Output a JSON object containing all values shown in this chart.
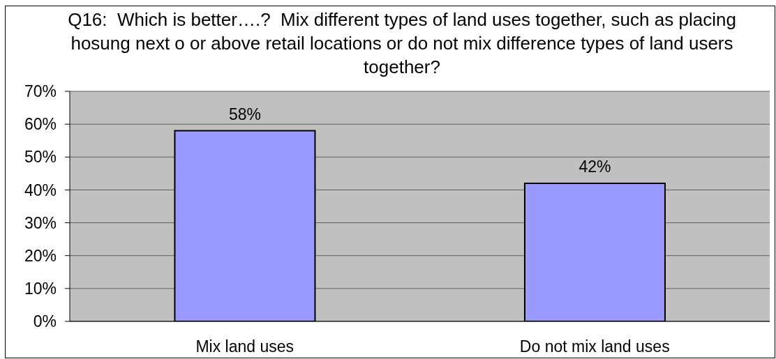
{
  "chart_data": {
    "type": "bar",
    "title": "Q16:  Which is better….?  Mix different types of land uses together, such as placing hosung next o or above retail locations or do not mix difference types of land users together?",
    "categories": [
      "Mix land uses",
      "Do not mix land uses"
    ],
    "values": [
      58,
      42
    ],
    "color": "#9999ff",
    "value_labels": [
      "58%",
      "42%"
    ],
    "ylim": [
      0,
      70
    ],
    "yticks": [
      {
        "value": 0,
        "label": "0%"
      },
      {
        "value": 10,
        "label": "10%"
      },
      {
        "value": 20,
        "label": "20%"
      },
      {
        "value": 30,
        "label": "30%"
      },
      {
        "value": 40,
        "label": "40%"
      },
      {
        "value": 50,
        "label": "50%"
      },
      {
        "value": 60,
        "label": "60%"
      },
      {
        "value": 70,
        "label": "70%"
      }
    ],
    "grid": "y"
  }
}
